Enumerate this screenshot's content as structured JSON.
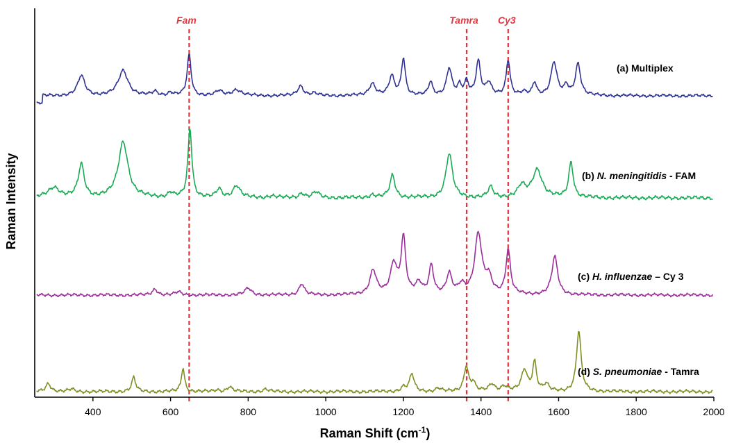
{
  "chart_data": {
    "type": "line",
    "title": "",
    "xlabel_main": "Raman Shift (cm",
    "xlabel_sup": "-1",
    "xlabel_close": ")",
    "ylabel": "Raman Intensity",
    "xlim": [
      250,
      2000
    ],
    "x_ticks": [
      "400",
      "600",
      "800",
      "1000",
      "1200",
      "1400",
      "1600",
      "1800",
      "2000"
    ],
    "y_ticks_shown": false,
    "grid": false,
    "markers": [
      {
        "label": "Fam",
        "x": 648
      },
      {
        "label": "Tamra",
        "x": 1363
      },
      {
        "label": "Cy3",
        "x": 1470
      }
    ],
    "series": [
      {
        "id": "a",
        "label_prefix": "(a) ",
        "label_italic": "",
        "label_suffix": "Multiplex",
        "color": "#2e3192",
        "baseline": 0.0,
        "peaks": [
          [
            370,
            1.3,
            11
          ],
          [
            478,
            1.65,
            15
          ],
          [
            560,
            0.25,
            8
          ],
          [
            600,
            0.2,
            8
          ],
          [
            648,
            2.7,
            6
          ],
          [
            725,
            0.3,
            10
          ],
          [
            770,
            0.4,
            14
          ],
          [
            935,
            0.65,
            9
          ],
          [
            970,
            0.15,
            10
          ],
          [
            1120,
            0.8,
            10
          ],
          [
            1170,
            1.25,
            8
          ],
          [
            1200,
            2.45,
            6
          ],
          [
            1270,
            0.9,
            6
          ],
          [
            1318,
            1.8,
            8
          ],
          [
            1345,
            0.6,
            6
          ],
          [
            1363,
            0.9,
            6
          ],
          [
            1393,
            2.25,
            7
          ],
          [
            1420,
            0.8,
            8
          ],
          [
            1470,
            2.35,
            6
          ],
          [
            1510,
            0.2,
            8
          ],
          [
            1538,
            0.85,
            6
          ],
          [
            1588,
            2.2,
            9
          ],
          [
            1620,
            0.6,
            6
          ],
          [
            1650,
            2.1,
            8
          ]
        ]
      },
      {
        "id": "b",
        "label_prefix": "(b) ",
        "label_italic": "N. meningitidis",
        "label_suffix": "  - FAM",
        "color": "#1aaa55",
        "baseline": 0.0,
        "peaks": [
          [
            300,
            0.55,
            18
          ],
          [
            370,
            1.75,
            9
          ],
          [
            478,
            3.0,
            15
          ],
          [
            600,
            0.25,
            8
          ],
          [
            650,
            3.75,
            6
          ],
          [
            725,
            0.45,
            8
          ],
          [
            770,
            0.65,
            11
          ],
          [
            860,
            0.1,
            12
          ],
          [
            938,
            0.25,
            8
          ],
          [
            975,
            0.3,
            10
          ],
          [
            1120,
            0.15,
            10
          ],
          [
            1172,
            1.2,
            8
          ],
          [
            1318,
            2.35,
            10
          ],
          [
            1425,
            0.55,
            8
          ],
          [
            1505,
            0.6,
            12
          ],
          [
            1545,
            1.5,
            15
          ],
          [
            1632,
            1.9,
            7
          ]
        ]
      },
      {
        "id": "c",
        "label_prefix": "(c) ",
        "label_italic": "H. influenzae",
        "label_suffix": " – Cy 3",
        "color": "#9b2e9b",
        "baseline": 0.0,
        "peaks": [
          [
            560,
            0.4,
            8
          ],
          [
            620,
            0.2,
            10
          ],
          [
            800,
            0.45,
            10
          ],
          [
            938,
            0.75,
            8
          ],
          [
            1122,
            1.6,
            10
          ],
          [
            1175,
            2.0,
            10
          ],
          [
            1200,
            3.7,
            7
          ],
          [
            1240,
            0.7,
            10
          ],
          [
            1272,
            1.9,
            7
          ],
          [
            1318,
            1.3,
            8
          ],
          [
            1350,
            0.6,
            10
          ],
          [
            1393,
            3.95,
            11
          ],
          [
            1420,
            1.0,
            10
          ],
          [
            1470,
            2.9,
            7
          ],
          [
            1590,
            2.5,
            9
          ]
        ]
      },
      {
        "id": "d",
        "label_prefix": "(d) ",
        "label_italic": "S. pneumoniae",
        "label_suffix": " - Tamra",
        "color": "#7f8f24",
        "baseline": 0.0,
        "peaks": [
          [
            285,
            0.5,
            8
          ],
          [
            345,
            0.15,
            8
          ],
          [
            505,
            0.85,
            6
          ],
          [
            632,
            1.45,
            5
          ],
          [
            720,
            0.1,
            8
          ],
          [
            752,
            0.3,
            8
          ],
          [
            845,
            0.15,
            8
          ],
          [
            1200,
            0.25,
            8
          ],
          [
            1222,
            1.05,
            7
          ],
          [
            1290,
            0.2,
            8
          ],
          [
            1362,
            1.55,
            7
          ],
          [
            1380,
            0.5,
            6
          ],
          [
            1428,
            0.45,
            9
          ],
          [
            1460,
            0.3,
            10
          ],
          [
            1512,
            1.3,
            9
          ],
          [
            1538,
            1.75,
            6
          ],
          [
            1568,
            0.4,
            8
          ],
          [
            1652,
            3.65,
            7
          ]
        ]
      }
    ]
  }
}
